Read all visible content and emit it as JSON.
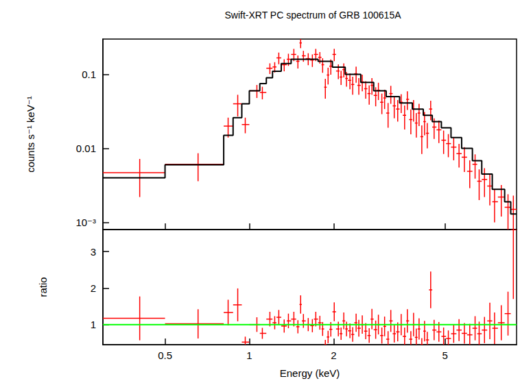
{
  "chart_data": [
    {
      "type": "scatter",
      "title": "Swift-XRT PC spectrum of GRB 100615A",
      "ylabel": "counts s⁻¹ keV⁻¹",
      "log": true,
      "tick_labels": "y",
      "xlim": [
        0.3,
        9.0
      ],
      "xticks": [
        0.5,
        1,
        2,
        5
      ],
      "ylim": [
        0.0008,
        0.3
      ],
      "yticks": [
        {
          "value": 0.001,
          "label": "10⁻³"
        },
        0.01,
        0.1
      ],
      "series": [
        {
          "type": "line",
          "line_style": "step",
          "color": "#000000",
          "bins": [
            0.3,
            0.5,
            0.81,
            0.875,
            0.94,
            1.0,
            1.09,
            1.15,
            1.21,
            1.3,
            1.41,
            1.54,
            1.76,
            1.98,
            2.2,
            2.5,
            2.78,
            3.08,
            3.44,
            3.82,
            4.18,
            4.5,
            4.85,
            5.25,
            5.73,
            6.26,
            6.76,
            7.37,
            8.16,
            8.58,
            9.0
          ],
          "values": [
            0.004,
            0.006,
            0.015,
            0.026,
            0.04,
            0.06,
            0.075,
            0.09,
            0.11,
            0.14,
            0.16,
            0.16,
            0.15,
            0.125,
            0.1,
            0.078,
            0.06,
            0.05,
            0.041,
            0.034,
            0.028,
            0.023,
            0.019,
            0.014,
            0.01,
            0.0068,
            0.0045,
            0.0028,
            0.0019,
            0.0013
          ]
        },
        {
          "type": "scatter",
          "color": "#ff0000",
          "x": [
            0.406,
            0.656,
            0.84,
            0.909,
            0.967,
            1.064,
            1.113,
            1.184,
            1.232,
            1.274,
            1.332,
            1.379,
            1.442,
            1.491,
            1.525,
            1.56,
            1.623,
            1.679,
            1.727,
            1.786,
            1.827,
            1.868,
            1.911,
            1.954,
            2.01,
            2.079,
            2.126,
            2.174,
            2.223,
            2.287,
            2.339,
            2.406,
            2.46,
            2.531,
            2.604,
            2.679,
            2.74,
            2.826,
            2.89,
            2.973,
            3.041,
            3.129,
            3.2,
            3.292,
            3.387,
            3.485,
            3.585,
            3.667,
            3.773,
            3.859,
            3.947,
            4.037,
            4.129,
            4.223,
            4.319,
            4.442,
            4.569,
            4.751,
            4.94,
            5.136,
            5.367,
            5.608,
            5.86,
            6.124,
            6.399,
            6.617,
            6.914,
            7.224,
            7.51,
            7.937,
            8.388,
            8.765
          ],
          "bins": [
            0.3,
            0.5,
            0.81,
            0.875,
            0.94,
            1.0,
            1.09,
            1.15,
            1.21,
            1.25,
            1.3,
            1.36,
            1.41,
            1.47,
            1.51,
            1.54,
            1.59,
            1.65,
            1.7,
            1.76,
            1.81,
            1.85,
            1.89,
            1.93,
            1.98,
            2.04,
            2.1,
            2.15,
            2.2,
            2.25,
            2.31,
            2.37,
            2.43,
            2.5,
            2.57,
            2.64,
            2.71,
            2.78,
            2.86,
            2.93,
            3.01,
            3.08,
            3.16,
            3.25,
            3.34,
            3.44,
            3.53,
            3.63,
            3.72,
            3.82,
            3.9,
            3.99,
            4.08,
            4.18,
            4.27,
            4.38,
            4.5,
            4.66,
            4.85,
            5.04,
            5.25,
            5.49,
            5.73,
            5.99,
            6.26,
            6.51,
            6.76,
            7.07,
            7.37,
            7.72,
            8.16,
            8.58,
            9.0
          ],
          "values": [
            0.0047,
            0.0061,
            0.02,
            0.04,
            0.021,
            0.06,
            0.057,
            0.121,
            0.126,
            0.167,
            0.135,
            0.16,
            0.186,
            0.15,
            0.266,
            0.178,
            0.163,
            0.156,
            0.186,
            0.17,
            0.135,
            0.067,
            0.098,
            0.129,
            0.186,
            0.111,
            0.092,
            0.116,
            0.088,
            0.083,
            0.073,
            0.102,
            0.071,
            0.079,
            0.064,
            0.055,
            0.071,
            0.052,
            0.061,
            0.042,
            0.048,
            0.03,
            0.055,
            0.0375,
            0.034,
            0.042,
            0.028,
            0.046,
            0.0245,
            0.034,
            0.022,
            0.03,
            0.0144,
            0.023,
            0.016,
            0.034,
            0.0194,
            0.0178,
            0.0129,
            0.0116,
            0.0104,
            0.0085,
            0.0076,
            0.0049,
            0.0061,
            0.0036,
            0.0038,
            0.0031,
            0.0019,
            0.0022,
            0.0016,
            0.0015
          ],
          "y_err": [
            0.0025,
            0.0025,
            0.006,
            0.013,
            0.005,
            0.012,
            0.011,
            0.02,
            0.02,
            0.03,
            0.025,
            0.03,
            0.035,
            0.03,
            0.04,
            0.03,
            0.03,
            0.03,
            0.035,
            0.03,
            0.03,
            0.02,
            0.025,
            0.03,
            0.035,
            0.025,
            0.02,
            0.025,
            0.02,
            0.02,
            0.02,
            0.025,
            0.018,
            0.02,
            0.017,
            0.016,
            0.018,
            0.015,
            0.016,
            0.013,
            0.014,
            0.011,
            0.015,
            0.012,
            0.011,
            0.012,
            0.01,
            0.013,
            0.009,
            0.011,
            0.008,
            0.01,
            0.006,
            0.008,
            0.006,
            0.01,
            0.006,
            0.006,
            0.0045,
            0.004,
            0.0035,
            0.003,
            0.0028,
            0.002,
            0.0022,
            0.0016,
            0.0016,
            0.0014,
            0.0009,
            0.001,
            0.0008,
            0.0008
          ]
        }
      ]
    },
    {
      "type": "scatter",
      "xlabel": "Energy (keV)",
      "ylabel": "ratio",
      "log": "x",
      "xlim": [
        0.3,
        9.0
      ],
      "xticks": [
        0.5,
        1,
        2,
        5
      ],
      "ylim": [
        0.45,
        3.6
      ],
      "yticks": [
        1,
        2,
        3
      ],
      "reference": {
        "value": 1,
        "color": "#00ff00"
      },
      "series": [
        {
          "type": "scatter",
          "color": "#ff0000",
          "x": [
            0.406,
            0.656,
            0.84,
            0.909,
            0.967,
            1.064,
            1.113,
            1.184,
            1.232,
            1.274,
            1.332,
            1.379,
            1.442,
            1.491,
            1.525,
            1.56,
            1.623,
            1.679,
            1.727,
            1.786,
            1.827,
            1.868,
            1.911,
            1.954,
            2.01,
            2.079,
            2.126,
            2.174,
            2.223,
            2.287,
            2.339,
            2.406,
            2.46,
            2.531,
            2.604,
            2.679,
            2.74,
            2.826,
            2.89,
            2.973,
            3.041,
            3.129,
            3.2,
            3.292,
            3.387,
            3.485,
            3.585,
            3.667,
            3.773,
            3.859,
            3.947,
            4.037,
            4.129,
            4.223,
            4.319,
            4.442,
            4.569,
            4.751,
            4.94,
            5.136,
            5.367,
            5.608,
            5.86,
            6.124,
            6.399,
            6.617,
            6.914,
            7.224,
            7.51,
            7.937,
            8.388,
            8.765
          ],
          "bins": [
            0.3,
            0.5,
            0.81,
            0.875,
            0.94,
            1.0,
            1.09,
            1.15,
            1.21,
            1.25,
            1.3,
            1.36,
            1.41,
            1.47,
            1.51,
            1.54,
            1.59,
            1.65,
            1.7,
            1.76,
            1.81,
            1.85,
            1.89,
            1.93,
            1.98,
            2.04,
            2.1,
            2.15,
            2.2,
            2.25,
            2.31,
            2.37,
            2.43,
            2.5,
            2.57,
            2.64,
            2.71,
            2.78,
            2.86,
            2.93,
            3.01,
            3.08,
            3.16,
            3.25,
            3.34,
            3.44,
            3.53,
            3.63,
            3.72,
            3.82,
            3.9,
            3.99,
            4.08,
            4.18,
            4.27,
            4.38,
            4.5,
            4.66,
            4.85,
            5.04,
            5.25,
            5.49,
            5.73,
            5.99,
            6.26,
            6.51,
            6.76,
            7.07,
            7.37,
            7.72,
            8.16,
            8.58,
            9.0
          ],
          "values": [
            1.17,
            1.02,
            1.33,
            1.54,
            0.52,
            1.0,
            0.76,
            1.15,
            1.05,
            1.2,
            0.96,
            1.1,
            1.15,
            0.94,
            1.55,
            1.1,
            1.0,
            0.97,
            1.15,
            1.05,
            0.88,
            0.45,
            0.66,
            0.87,
            1.35,
            0.88,
            0.75,
            1.1,
            0.88,
            0.83,
            0.73,
            1.05,
            0.9,
            1.0,
            0.82,
            0.7,
            1.15,
            0.86,
            1.0,
            0.7,
            0.95,
            0.6,
            1.1,
            0.75,
            0.8,
            1.0,
            0.68,
            1.1,
            0.6,
            1.0,
            0.65,
            0.88,
            0.45,
            0.82,
            0.58,
            1.95,
            0.85,
            0.8,
            0.68,
            0.62,
            0.75,
            0.85,
            0.76,
            0.72,
            0.9,
            0.75,
            0.85,
            1.1,
            0.9,
            1.05,
            1.3,
            3.6
          ],
          "y_err": [
            0.6,
            0.4,
            0.35,
            0.45,
            0.15,
            0.2,
            0.15,
            0.2,
            0.18,
            0.2,
            0.18,
            0.2,
            0.2,
            0.18,
            0.25,
            0.19,
            0.18,
            0.18,
            0.2,
            0.19,
            0.19,
            0.13,
            0.17,
            0.2,
            0.26,
            0.2,
            0.17,
            0.23,
            0.2,
            0.2,
            0.2,
            0.25,
            0.23,
            0.25,
            0.22,
            0.2,
            0.28,
            0.25,
            0.27,
            0.22,
            0.27,
            0.22,
            0.3,
            0.24,
            0.26,
            0.29,
            0.24,
            0.32,
            0.22,
            0.32,
            0.24,
            0.29,
            0.18,
            0.28,
            0.22,
            0.5,
            0.28,
            0.27,
            0.24,
            0.22,
            0.25,
            0.3,
            0.28,
            0.3,
            0.33,
            0.33,
            0.36,
            0.5,
            0.43,
            0.48,
            0.6,
            1.9
          ]
        }
      ]
    }
  ]
}
